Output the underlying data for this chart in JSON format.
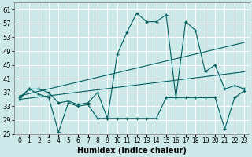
{
  "bg_color": "#cce8e8",
  "grid_color": "#ffffff",
  "line_color": "#006060",
  "xlabel": "Humidex (Indice chaleur)",
  "ylim": [
    25,
    63
  ],
  "xlim": [
    -0.5,
    23.5
  ],
  "yticks": [
    25,
    29,
    33,
    37,
    41,
    45,
    49,
    53,
    57,
    61
  ],
  "xticks": [
    0,
    1,
    2,
    3,
    4,
    5,
    6,
    7,
    8,
    9,
    10,
    11,
    12,
    13,
    14,
    15,
    16,
    17,
    18,
    19,
    20,
    21,
    22,
    23
  ],
  "series": {
    "trend_upper": {
      "x": [
        0,
        23
      ],
      "y": [
        36.0,
        51.5
      ]
    },
    "trend_lower": {
      "x": [
        0,
        23
      ],
      "y": [
        35.0,
        43.0
      ]
    },
    "zigzag_high": {
      "x": [
        0,
        1,
        2,
        3,
        4,
        5,
        6,
        7,
        8,
        9,
        10,
        11,
        12,
        13,
        14,
        15,
        16,
        17,
        18,
        19,
        20,
        21,
        22,
        23
      ],
      "y": [
        35.5,
        38.0,
        38.0,
        37.0,
        34.0,
        34.5,
        33.5,
        34.0,
        37.0,
        29.5,
        48.0,
        54.5,
        60.0,
        57.5,
        57.5,
        59.5,
        35.5,
        57.5,
        55.0,
        43.0,
        45.0,
        38.0,
        39.0,
        38.0
      ]
    },
    "zigzag_low": {
      "x": [
        0,
        1,
        2,
        3,
        4,
        5,
        6,
        7,
        8,
        9,
        10,
        11,
        12,
        13,
        14,
        15,
        16,
        17,
        18,
        19,
        20,
        21,
        22,
        23
      ],
      "y": [
        35.0,
        38.0,
        36.5,
        35.5,
        25.5,
        34.0,
        33.0,
        33.5,
        29.5,
        29.5,
        29.5,
        29.5,
        29.5,
        29.5,
        29.5,
        35.5,
        35.5,
        35.5,
        35.5,
        35.5,
        35.5,
        26.5,
        35.5,
        37.5
      ]
    }
  }
}
